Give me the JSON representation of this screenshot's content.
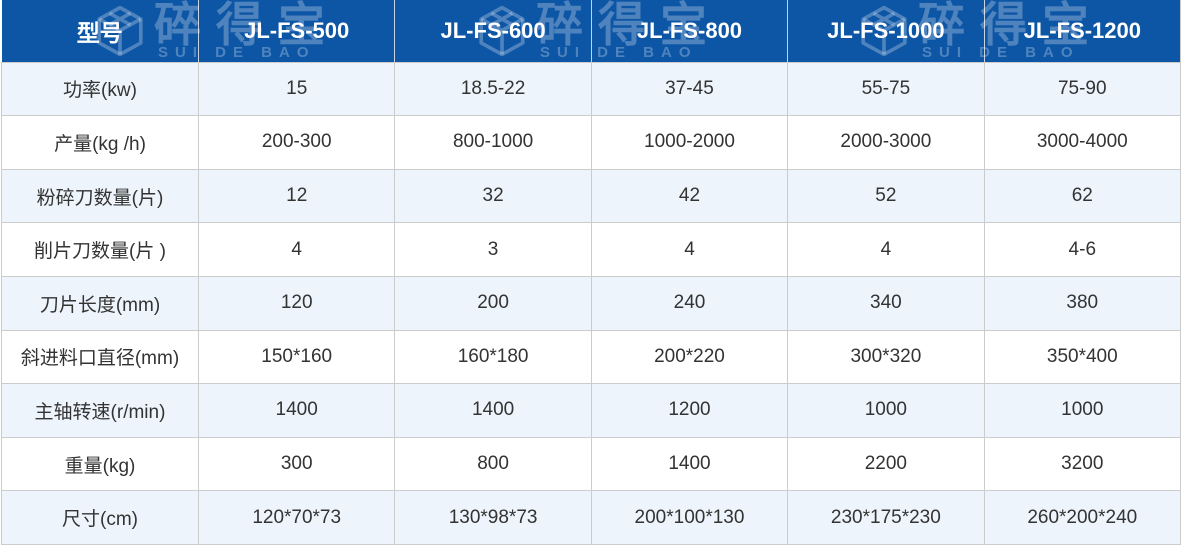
{
  "brand": {
    "name_cn": "碎得宝",
    "name_en": "SUI DE BAO"
  },
  "table": {
    "header_label": "型号",
    "models": [
      "JL-FS-500",
      "JL-FS-600",
      "JL-FS-800",
      "JL-FS-1000",
      "JL-FS-1200"
    ],
    "rows": [
      {
        "label": "功率(kw)",
        "values": [
          "15",
          "18.5-22",
          "37-45",
          "55-75",
          "75-90"
        ]
      },
      {
        "label": "产量(kg /h)",
        "values": [
          "200-300",
          "800-1000",
          "1000-2000",
          "2000-3000",
          "3000-4000"
        ]
      },
      {
        "label": "粉碎刀数量(片)",
        "values": [
          "12",
          "32",
          "42",
          "52",
          "62"
        ]
      },
      {
        "label": "削片刀数量(片 )",
        "values": [
          "4",
          "3",
          "4",
          "4",
          "4-6"
        ]
      },
      {
        "label": "刀片长度(mm)",
        "values": [
          "120",
          "200",
          "240",
          "340",
          "380"
        ]
      },
      {
        "label": "斜进料口直径(mm)",
        "values": [
          "150*160",
          "160*180",
          "200*220",
          "300*320",
          "350*400"
        ]
      },
      {
        "label": "主轴转速(r/min)",
        "values": [
          "1400",
          "1400",
          "1200",
          "1000",
          "1000"
        ]
      },
      {
        "label": "重量(kg)",
        "values": [
          "300",
          "800",
          "1400",
          "2200",
          "3200"
        ]
      },
      {
        "label": "尺寸(cm)",
        "values": [
          "120*70*73",
          "130*98*73",
          "200*100*130",
          "230*175*230",
          "260*200*240"
        ]
      }
    ]
  },
  "colors": {
    "header_bg": "#0d56a6",
    "row_alt": "#edf4fb",
    "row_white": "#ffffff",
    "border": "#cccccc",
    "header_text": "#ffffff",
    "body_text": "#333333",
    "watermark": "rgba(255,255,255,0.27)",
    "page_bg": "#ffffff"
  }
}
